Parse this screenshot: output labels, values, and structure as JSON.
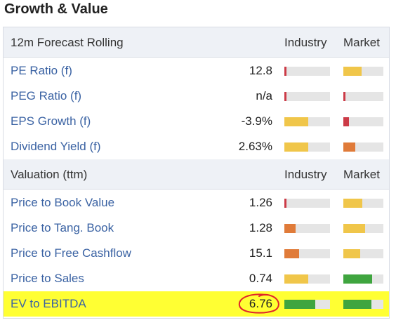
{
  "title": "Growth & Value",
  "colors": {
    "red": "#cc3b47",
    "yellow": "#f0c64a",
    "orange": "#e07b39",
    "green": "#3fa53f",
    "highlight": "#ffff33",
    "circle": "#e0242b"
  },
  "sections": [
    {
      "header": "12m Forecast Rolling",
      "col_industry": "Industry",
      "col_market": "Market",
      "rows": [
        {
          "name": "PE Ratio (f)",
          "value": "12.8",
          "industry": {
            "level": 0.05,
            "color": "red"
          },
          "market": {
            "level": 0.45,
            "color": "yellow"
          }
        },
        {
          "name": "PEG Ratio (f)",
          "value": "n/a",
          "industry": {
            "level": 0.05,
            "color": "red"
          },
          "market": {
            "level": 0.05,
            "color": "red"
          }
        },
        {
          "name": "EPS Growth (f)",
          "value": "-3.9%",
          "industry": {
            "level": 0.52,
            "color": "yellow"
          },
          "market": {
            "level": 0.14,
            "color": "red"
          }
        },
        {
          "name": "Dividend Yield (f)",
          "value": "2.63%",
          "industry": {
            "level": 0.52,
            "color": "yellow"
          },
          "market": {
            "level": 0.3,
            "color": "orange"
          }
        }
      ]
    },
    {
      "header": "Valuation (ttm)",
      "col_industry": "Industry",
      "col_market": "Market",
      "rows": [
        {
          "name": "Price to Book Value",
          "value": "1.26",
          "industry": {
            "level": 0.05,
            "color": "red"
          },
          "market": {
            "level": 0.47,
            "color": "yellow"
          }
        },
        {
          "name": "Price to Tang. Book",
          "value": "1.28",
          "industry": {
            "level": 0.24,
            "color": "orange"
          },
          "market": {
            "level": 0.55,
            "color": "yellow"
          }
        },
        {
          "name": "Price to Free Cashflow",
          "value": "15.1",
          "industry": {
            "level": 0.33,
            "color": "orange"
          },
          "market": {
            "level": 0.42,
            "color": "yellow"
          }
        },
        {
          "name": "Price to Sales",
          "value": "0.74",
          "industry": {
            "level": 0.52,
            "color": "yellow"
          },
          "market": {
            "level": 0.72,
            "color": "green"
          }
        },
        {
          "name": "EV to EBITDA",
          "value": "6.76",
          "highlight": true,
          "circled": true,
          "industry": {
            "level": 0.68,
            "color": "green"
          },
          "market": {
            "level": 0.7,
            "color": "green"
          }
        }
      ]
    }
  ]
}
